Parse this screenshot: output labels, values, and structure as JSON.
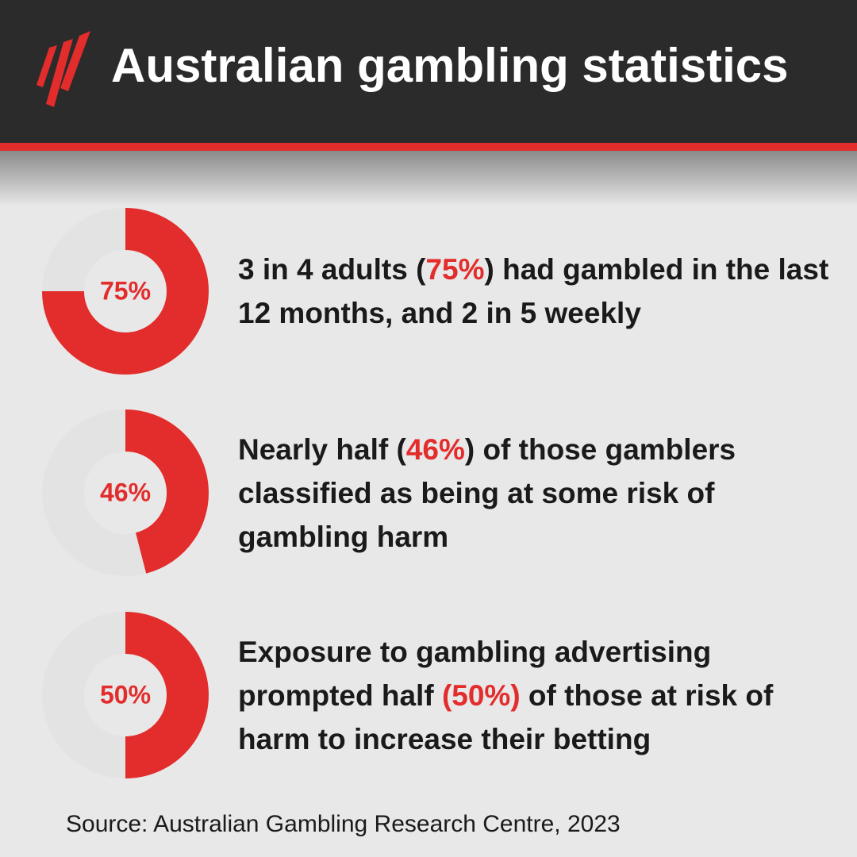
{
  "header": {
    "title": "Australian gambling statistics"
  },
  "chart_data": [
    {
      "type": "donut",
      "values": [
        75,
        25
      ],
      "value_labels": [
        "75%",
        null
      ],
      "colors": [
        "#e32c2c",
        "#e3e3e3"
      ]
    },
    {
      "type": "donut",
      "values": [
        46,
        54
      ],
      "value_labels": [
        "46%",
        null
      ],
      "colors": [
        "#e32c2c",
        "#e3e3e3"
      ]
    },
    {
      "type": "donut",
      "values": [
        50,
        50
      ],
      "value_labels": [
        "50%",
        null
      ],
      "colors": [
        "#e32c2c",
        "#e3e3e3"
      ]
    }
  ],
  "statements": [
    {
      "before": "3 in 4 adults (",
      "highlight": "75%",
      "after": ") had gambled in the last 12 months, and 2 in 5 weekly"
    },
    {
      "before": "Nearly half (",
      "highlight": "46%",
      "after": ") of those gamblers classified as being at some risk of gambling harm"
    },
    {
      "before": "Exposure to gambling advertising prompted half ",
      "highlight": "(50%)",
      "after": " of those at risk of harm to increase their betting"
    }
  ],
  "source": "Source: Australian Gambling Research Centre, 2023"
}
